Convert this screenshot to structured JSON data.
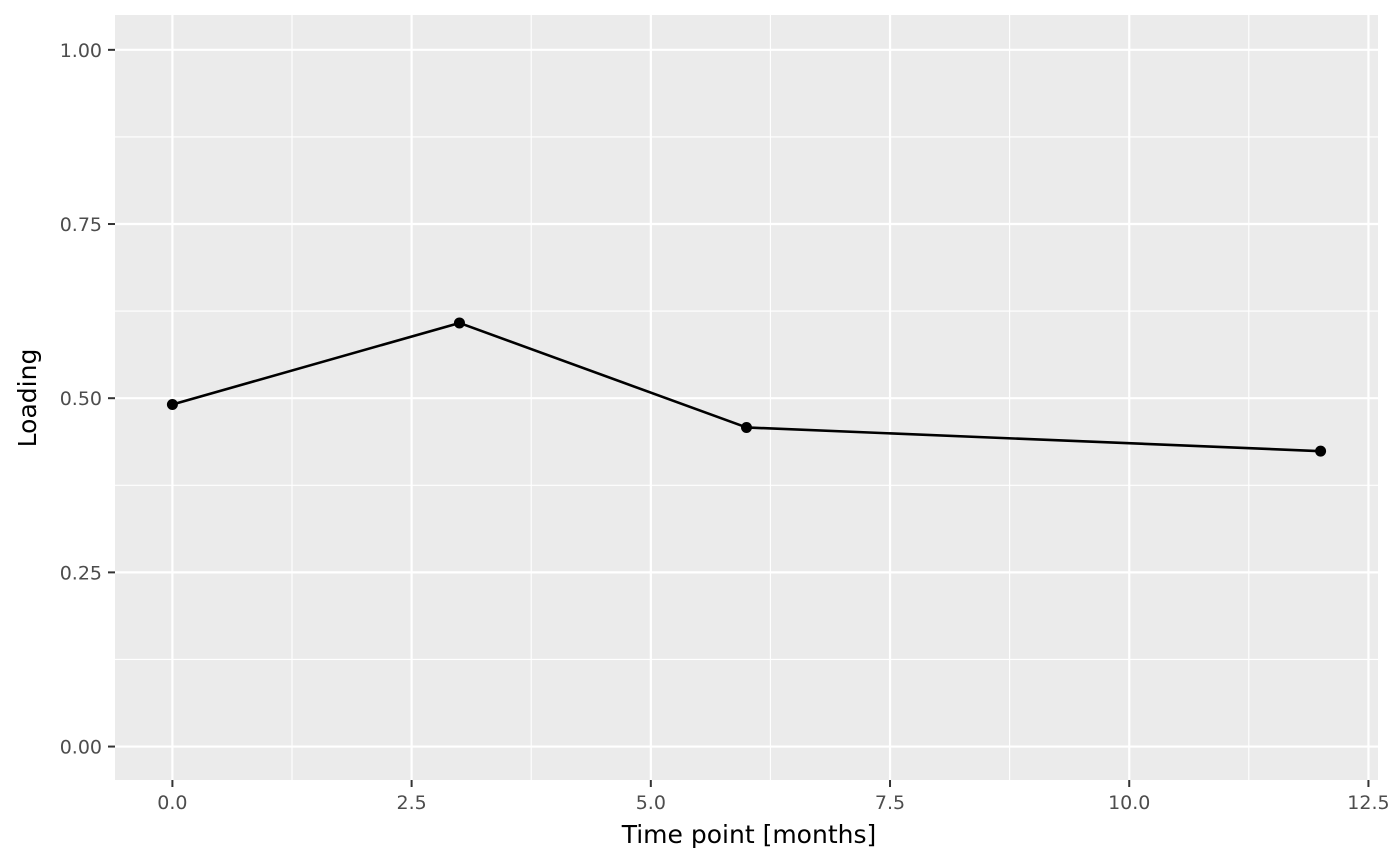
{
  "chart_data": {
    "type": "line",
    "title": "",
    "xlabel": "Time point [months]",
    "ylabel": "Loading",
    "x": [
      0,
      3,
      6,
      12
    ],
    "series": [
      {
        "values": [
          0.491,
          0.608,
          0.458,
          0.424
        ]
      }
    ],
    "xlim": [
      -0.6,
      12.6
    ],
    "ylim": [
      -0.048,
      1.05
    ],
    "x_ticks": [
      0,
      2.5,
      5,
      7.5,
      10,
      12.5
    ],
    "x_tick_labels": [
      "0.0",
      "2.5",
      "5.0",
      "7.5",
      "10.0",
      "12.5"
    ],
    "y_ticks": [
      0,
      0.25,
      0.5,
      0.75,
      1
    ],
    "y_tick_labels": [
      "0.00",
      "0.25",
      "0.50",
      "0.75",
      "1.00"
    ],
    "grid": true,
    "colors": {
      "panel_background": "#ebebeb",
      "grid": "#ffffff",
      "line": "#000000",
      "point": "#000000",
      "tick_text": "#4d4d4d",
      "axis_tick": "#333333"
    }
  }
}
